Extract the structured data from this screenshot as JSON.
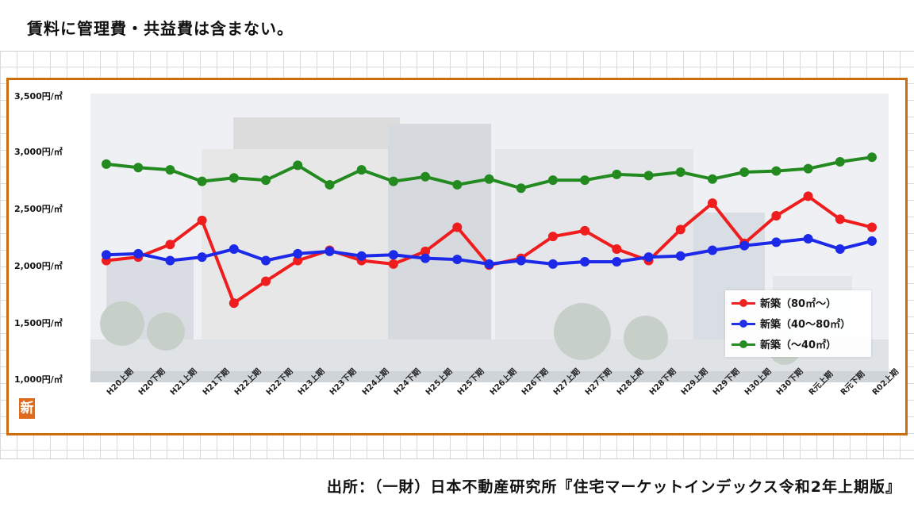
{
  "note": "賃料に管理費・共益費は含まない。",
  "source": "出所：（一財）日本不動産研究所『住宅マーケットインデックス令和2年上期版』",
  "badge": "新",
  "colors": {
    "frame": "#cc6d0f",
    "series_red": "#ef1d1d",
    "series_blue": "#1c29e8",
    "series_green": "#228a1f"
  },
  "chart_data": {
    "type": "line",
    "title": "",
    "xlabel": "",
    "ylabel": "",
    "ylim": [
      1000,
      3500
    ],
    "y_ticks": [
      3500,
      3000,
      2500,
      2000,
      1500,
      1000
    ],
    "y_tick_labels": [
      "3,500円/㎡",
      "3,000円/㎡",
      "2,500円/㎡",
      "2,000円/㎡",
      "1,500円/㎡",
      "1,000円/㎡"
    ],
    "categories": [
      "H20上期",
      "H20下期",
      "H21上期",
      "H21下期",
      "H22上期",
      "H22下期",
      "H23上期",
      "H23下期",
      "H24上期",
      "H24下期",
      "H25上期",
      "H25下期",
      "H26上期",
      "H26下期",
      "H27上期",
      "H27下期",
      "H28上期",
      "H28下期",
      "H29上期",
      "H29下期",
      "H30上期",
      "H30下期",
      "R元上期",
      "R元下期",
      "R02上期"
    ],
    "series": [
      {
        "name": "新築（80㎡～）",
        "color": "#ef1d1d",
        "values": [
          2060,
          2090,
          2200,
          2410,
          1690,
          1880,
          2060,
          2150,
          2060,
          2030,
          2140,
          2350,
          2020,
          2080,
          2270,
          2320,
          2160,
          2060,
          2330,
          2560,
          2210,
          2450,
          2620,
          2420,
          2350
        ]
      },
      {
        "name": "新築（40～80㎡）",
        "color": "#1c29e8",
        "values": [
          2110,
          2120,
          2060,
          2090,
          2160,
          2060,
          2120,
          2140,
          2100,
          2110,
          2080,
          2070,
          2030,
          2060,
          2030,
          2050,
          2050,
          2090,
          2100,
          2150,
          2190,
          2220,
          2250,
          2160,
          2230
        ]
      },
      {
        "name": "新築（～40㎡）",
        "color": "#228a1f",
        "values": [
          2900,
          2870,
          2850,
          2750,
          2780,
          2760,
          2890,
          2720,
          2850,
          2750,
          2790,
          2720,
          2770,
          2690,
          2760,
          2760,
          2810,
          2800,
          2830,
          2770,
          2830,
          2840,
          2860,
          2920,
          2960
        ]
      }
    ],
    "legend_position": "bottom-right"
  }
}
